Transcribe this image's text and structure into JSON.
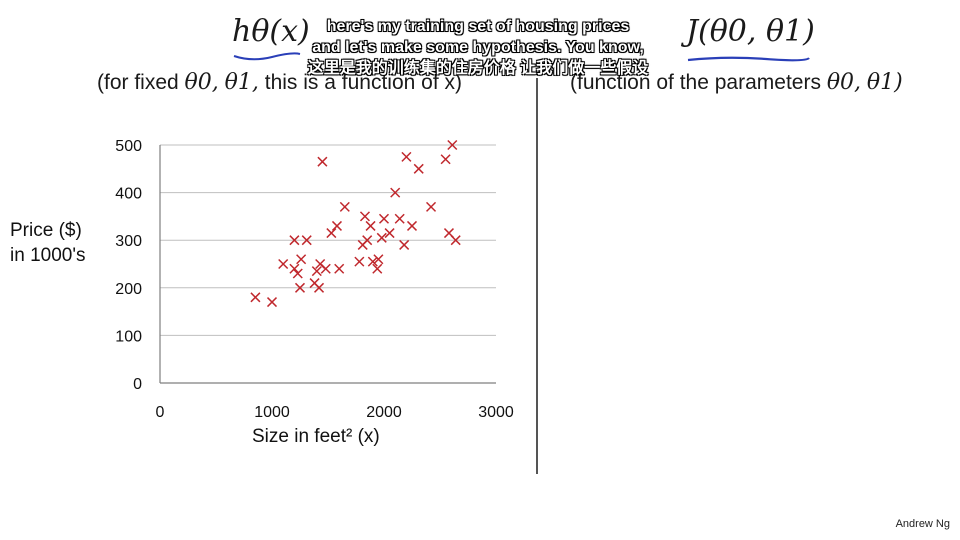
{
  "header": {
    "left_title": "hθ(x)",
    "right_title": "J(θ0, θ1)",
    "left_subtitle_prefix": "(for fixed",
    "left_subtitle_theta0": "θ0,",
    "left_subtitle_theta1": "θ1,",
    "left_subtitle_suffix": "this is a function of x)",
    "right_subtitle_prefix": "(function of the parameters",
    "right_subtitle_theta0": "θ0,",
    "right_subtitle_theta1": "θ1)"
  },
  "captions": {
    "line1": "here's my training set of housing prices",
    "line2": "and let's make some hypothesis. You know,",
    "line3": "这里是我的训练集的住房价格 让我们做一些假设"
  },
  "credit": "Andrew Ng",
  "colors": {
    "marker": "#c0282d",
    "grid": "#bfbfbf",
    "axis": "#7f7f7f",
    "underline": "#2a3fb8"
  },
  "chart_data": {
    "type": "scatter",
    "marker": "x",
    "title": "",
    "xlabel": "Size in feet² (x)",
    "ylabel_line1": "Price ($)",
    "ylabel_line2": "in 1000's",
    "xlim": [
      0,
      3000
    ],
    "ylim": [
      0,
      500
    ],
    "xticks": [
      0,
      1000,
      2000,
      3000
    ],
    "yticks": [
      0,
      100,
      200,
      300,
      400,
      500
    ],
    "grid": "horizontal",
    "series": [
      {
        "points": [
          [
            852,
            180
          ],
          [
            1000,
            170
          ],
          [
            1100,
            250
          ],
          [
            1200,
            300
          ],
          [
            1200,
            240
          ],
          [
            1230,
            230
          ],
          [
            1250,
            200
          ],
          [
            1260,
            260
          ],
          [
            1310,
            300
          ],
          [
            1380,
            210
          ],
          [
            1400,
            235
          ],
          [
            1420,
            200
          ],
          [
            1430,
            250
          ],
          [
            1450,
            465
          ],
          [
            1480,
            240
          ],
          [
            1530,
            315
          ],
          [
            1580,
            330
          ],
          [
            1600,
            240
          ],
          [
            1650,
            370
          ],
          [
            1780,
            255
          ],
          [
            1810,
            290
          ],
          [
            1830,
            350
          ],
          [
            1850,
            300
          ],
          [
            1880,
            330
          ],
          [
            1900,
            255
          ],
          [
            1940,
            240
          ],
          [
            1950,
            260
          ],
          [
            1980,
            305
          ],
          [
            2000,
            345
          ],
          [
            2050,
            315
          ],
          [
            2100,
            400
          ],
          [
            2140,
            345
          ],
          [
            2180,
            290
          ],
          [
            2200,
            475
          ],
          [
            2250,
            330
          ],
          [
            2310,
            450
          ],
          [
            2420,
            370
          ],
          [
            2550,
            470
          ],
          [
            2580,
            315
          ],
          [
            2610,
            500
          ],
          [
            2640,
            300
          ]
        ]
      }
    ]
  }
}
